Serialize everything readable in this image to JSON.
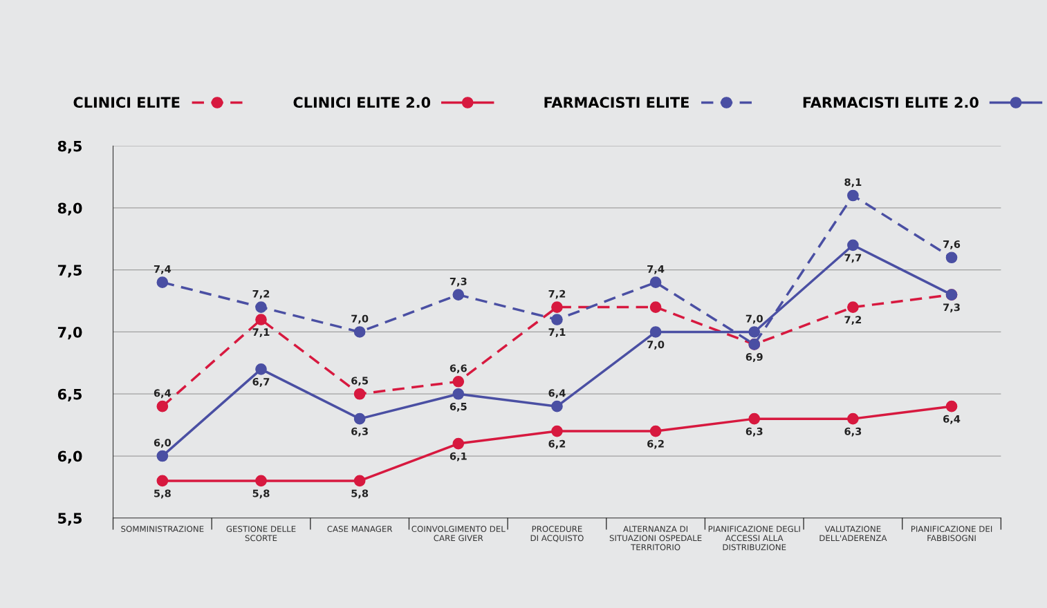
{
  "chart_data": {
    "type": "line",
    "categories": [
      "SOMMINISTRAZIONE",
      "GESTIONE DELLE\nSCORTE",
      "CASE MANAGER",
      "COINVOLGIMENTO DEL\nCARE GIVER",
      "PROCEDURE\nDI ACQUISTO",
      "ALTERNANZA DI\nSITUAZIONI OSPEDALE\nTERRITORIO",
      "PIANIFICAZIONE DEGLI\nACCESSI ALLA\nDISTRIBUZIONE",
      "VALUTAZIONE\nDELL'ADERENZA",
      "PIANIFICAZIONE DEI\nFABBISOGNI"
    ],
    "series": [
      {
        "name": "CLINICI ELITE",
        "color": "#d7193f",
        "line_style": "dashed",
        "values": [
          6.4,
          7.1,
          6.5,
          6.6,
          7.2,
          7.2,
          6.9,
          7.2,
          7.3
        ],
        "value_labels": [
          "6,4",
          "7,1",
          "6,5",
          "6,6",
          "7,2",
          null,
          null,
          "7,2",
          null
        ]
      },
      {
        "name": "CLINICI ELITE 2.0",
        "color": "#d7193f",
        "line_style": "solid",
        "values": [
          5.8,
          5.8,
          5.8,
          6.1,
          6.2,
          6.2,
          6.3,
          6.3,
          6.4
        ],
        "value_labels": [
          "5,8",
          "5,8",
          "5,8",
          "6,1",
          "6,2",
          "6,2",
          "6,3",
          "6,3",
          "6,4"
        ]
      },
      {
        "name": "FARMACISTI ELITE",
        "color": "#4a4fa3",
        "line_style": "dashed",
        "values": [
          7.4,
          7.2,
          7.0,
          7.3,
          7.1,
          7.4,
          6.9,
          8.1,
          7.6
        ],
        "value_labels": [
          "7,4",
          "7,2",
          "7,0",
          "7,3",
          "7,1",
          "7,4",
          "6,9",
          "8,1",
          "7,6"
        ]
      },
      {
        "name": "FARMACISTI ELITE 2.0",
        "color": "#4a4fa3",
        "line_style": "solid",
        "values": [
          6.0,
          6.7,
          6.3,
          6.5,
          6.4,
          7.0,
          7.0,
          7.7,
          7.3
        ],
        "value_labels": [
          "6,0",
          "6,7",
          "6,3",
          "6,5",
          "6,4",
          "7,0",
          "7,0",
          "7,7",
          "7,3"
        ]
      }
    ],
    "ylim": [
      5.5,
      8.5
    ],
    "yticks": [
      {
        "value": 5.5,
        "label": "5,5"
      },
      {
        "value": 6.0,
        "label": "6,0"
      },
      {
        "value": 6.5,
        "label": "6,5"
      },
      {
        "value": 7.0,
        "label": "7,0"
      },
      {
        "value": 7.5,
        "label": "7,5"
      },
      {
        "value": 8.0,
        "label": "8,0"
      },
      {
        "value": 8.5,
        "label": "8,5"
      }
    ],
    "grid": "y",
    "legend": "top",
    "marker": "circle"
  }
}
